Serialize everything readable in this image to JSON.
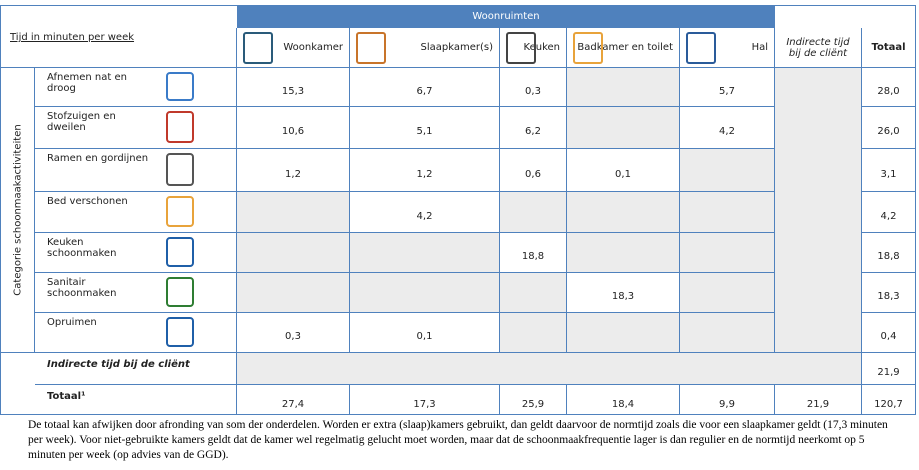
{
  "table": {
    "banner": "Woonruimten",
    "corner": "Tijd in minuten per week",
    "side_label": "Categorie schoonmaakactiviteiten",
    "columns": [
      "Woonkamer",
      "Slaapkamer(s)",
      "Keuken",
      "Badkamer en toilet",
      "Hal",
      "Indirecte tijd bij de cliënt",
      "Totaal"
    ],
    "rows": [
      {
        "label": "Afnemen nat en droog",
        "cells": [
          "15,3",
          "6,7",
          "0,3",
          null,
          "5,7",
          null,
          "28,0"
        ]
      },
      {
        "label": "Stofzuigen en dweilen",
        "cells": [
          "10,6",
          "5,1",
          "6,2",
          null,
          "4,2",
          null,
          "26,0"
        ]
      },
      {
        "label": "Ramen en gordijnen",
        "cells": [
          "1,2",
          "1,2",
          "0,6",
          "0,1",
          null,
          null,
          "3,1"
        ]
      },
      {
        "label": "Bed verschonen",
        "cells": [
          null,
          "4,2",
          null,
          null,
          null,
          null,
          "4,2"
        ]
      },
      {
        "label": "Keuken schoonmaken",
        "cells": [
          null,
          null,
          "18,8",
          null,
          null,
          null,
          "18,8"
        ]
      },
      {
        "label": "Sanitair schoonmaken",
        "cells": [
          null,
          null,
          null,
          "18,3",
          null,
          null,
          "18,3"
        ]
      },
      {
        "label": "Opruimen",
        "cells": [
          "0,3",
          "0,1",
          null,
          null,
          null,
          null,
          "0,4"
        ]
      }
    ],
    "indirect_row": {
      "label": "Indirecte tijd bij de cliënt",
      "total": "21,9"
    },
    "total_row": {
      "label": "Totaal¹",
      "cells": [
        "27,4",
        "17,3",
        "25,9",
        "18,4",
        "9,9",
        "21,9",
        "120,7"
      ]
    }
  },
  "footnote": "De totaal kan afwijken door afronding van som der onderdelen. Worden er extra (slaap)kamers gebruikt, dan geldt daarvoor de normtijd zoals die voor een slaapkamer geldt (17,3 minuten per week). Voor niet-gebruikte kamers geldt dat de kamer wel regelmatig gelucht moet worden, maar dat de schoonmaakfrequentie lager is dan regulier en de normtijd neerkomt op 5 minuten per week (op advies van de GGD)."
}
